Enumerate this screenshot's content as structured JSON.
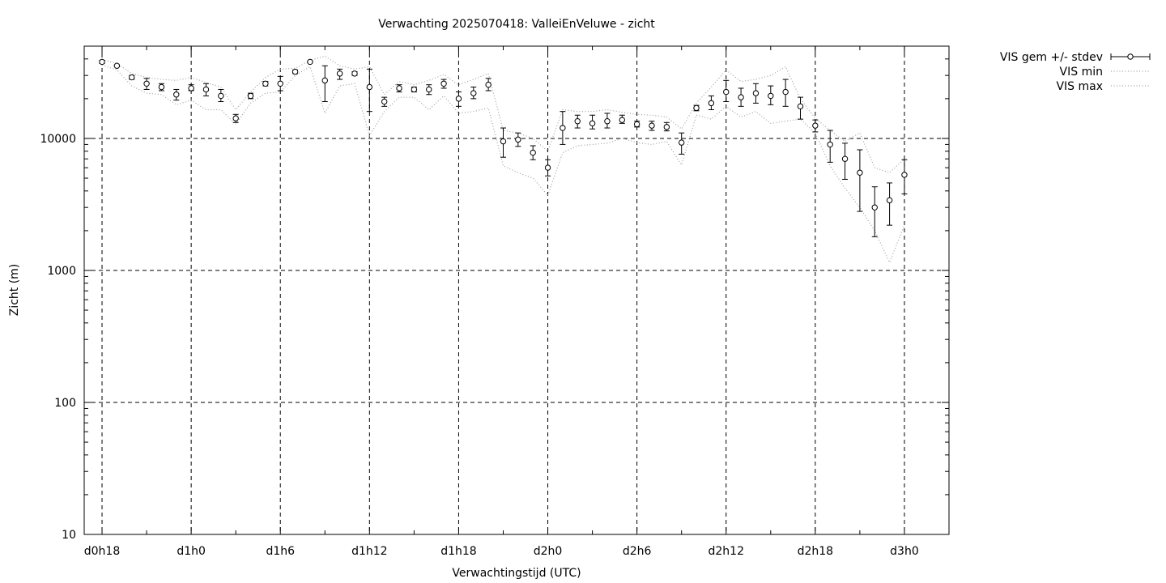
{
  "chart_data": {
    "type": "scatter",
    "title": "Verwachting 2025070418: ValleiEnVeluwe - zicht",
    "xlabel": "Verwachtingstijd (UTC)",
    "ylabel": "Zicht (m)",
    "y_scale": "log",
    "ylim": [
      10,
      50000
    ],
    "xlim_hours": [
      -1.2,
      57
    ],
    "y_ticks": [
      {
        "value": 10,
        "label": "10"
      },
      {
        "value": 100,
        "label": "100"
      },
      {
        "value": 1000,
        "label": "1000"
      },
      {
        "value": 10000,
        "label": "10000"
      }
    ],
    "x_ticks": [
      {
        "hour": 0,
        "label": "d0h18"
      },
      {
        "hour": 6,
        "label": "d1h0"
      },
      {
        "hour": 12,
        "label": "d1h6"
      },
      {
        "hour": 18,
        "label": "d1h12"
      },
      {
        "hour": 24,
        "label": "d1h18"
      },
      {
        "hour": 30,
        "label": "d2h0"
      },
      {
        "hour": 36,
        "label": "d2h6"
      },
      {
        "hour": 42,
        "label": "d2h12"
      },
      {
        "hour": 48,
        "label": "d2h18"
      },
      {
        "hour": 54,
        "label": "d3h0"
      }
    ],
    "grid": true,
    "legend_position": "outside-top-right",
    "series": [
      {
        "name": "VIS gem +/- stdev",
        "style": "points-with-errorbars",
        "color": "#000000",
        "x": [
          0,
          1,
          2,
          3,
          4,
          5,
          6,
          7,
          8,
          9,
          10,
          11,
          12,
          13,
          14,
          15,
          16,
          17,
          18,
          19,
          20,
          21,
          22,
          23,
          24,
          25,
          26,
          27,
          28,
          29,
          30,
          31,
          32,
          33,
          34,
          35,
          36,
          37,
          38,
          39,
          40,
          41,
          42,
          43,
          44,
          45,
          46,
          47,
          48,
          49,
          50,
          51,
          52,
          53,
          54
        ],
        "values": [
          38000,
          35500,
          29000,
          26000,
          24500,
          21500,
          24000,
          23500,
          21000,
          14200,
          21000,
          26000,
          26000,
          32000,
          38000,
          27500,
          31000,
          31000,
          24500,
          19000,
          24000,
          23500,
          23500,
          26000,
          20000,
          22000,
          25500,
          9500,
          9800,
          7800,
          6000,
          12000,
          13500,
          13000,
          13500,
          13800,
          12800,
          12500,
          12200,
          9300,
          17000,
          18500,
          22500,
          20500,
          22000,
          21000,
          22500,
          17500,
          12500,
          9000,
          7000,
          5500,
          3000,
          3400,
          5300
        ],
        "err_low": [
          37000,
          35000,
          28000,
          23500,
          23000,
          19500,
          23000,
          21000,
          19000,
          13200,
          20000,
          25000,
          23000,
          31000,
          37500,
          19000,
          28000,
          30000,
          16000,
          17500,
          22500,
          22500,
          21500,
          24000,
          17500,
          20000,
          23000,
          7200,
          8700,
          6900,
          5200,
          9000,
          12000,
          11800,
          12000,
          13000,
          12200,
          11500,
          11400,
          7600,
          16200,
          16500,
          19000,
          17500,
          18500,
          18000,
          17500,
          14000,
          11200,
          6600,
          4900,
          2800,
          1800,
          2200,
          3800
        ],
        "err_high": [
          39000,
          36000,
          30000,
          28500,
          26000,
          23500,
          25500,
          26000,
          23500,
          15200,
          22000,
          27000,
          29500,
          33000,
          38500,
          35500,
          33500,
          32000,
          33500,
          20500,
          25500,
          24500,
          25500,
          28000,
          22500,
          24500,
          28500,
          12000,
          11000,
          8800,
          6900,
          16000,
          15000,
          15000,
          15500,
          15000,
          13500,
          13500,
          13200,
          11000,
          17800,
          21000,
          27500,
          24000,
          26000,
          25000,
          28000,
          20500,
          13800,
          11500,
          9200,
          8200,
          4300,
          4600,
          6900
        ]
      },
      {
        "name": "VIS min",
        "style": "dotted-line",
        "color": "#a0a0a0",
        "x": [
          0,
          1,
          2,
          3,
          4,
          5,
          6,
          7,
          8,
          9,
          10,
          11,
          12,
          13,
          14,
          15,
          16,
          17,
          18,
          19,
          20,
          21,
          22,
          23,
          24,
          25,
          26,
          27,
          28,
          29,
          30,
          31,
          32,
          33,
          34,
          35,
          36,
          37,
          38,
          39,
          40,
          41,
          42,
          43,
          44,
          45,
          46,
          47,
          48,
          49,
          50,
          51,
          52,
          53,
          54
        ],
        "values": [
          36000,
          33000,
          25000,
          22000,
          21500,
          18000,
          19500,
          16500,
          16500,
          12800,
          18500,
          22000,
          22500,
          30000,
          35000,
          15500,
          25000,
          26000,
          10500,
          16000,
          20500,
          20500,
          16500,
          21000,
          15500,
          16000,
          17000,
          6200,
          5500,
          5000,
          3700,
          7800,
          8800,
          9000,
          9200,
          10000,
          9300,
          9000,
          9500,
          6300,
          15000,
          14000,
          17500,
          14500,
          16000,
          13000,
          13500,
          14000,
          11000,
          6200,
          4200,
          3000,
          2000,
          1150,
          2200
        ]
      },
      {
        "name": "VIS max",
        "style": "dotted-line",
        "color": "#a0a0a0",
        "x": [
          0,
          1,
          2,
          3,
          4,
          5,
          6,
          7,
          8,
          9,
          10,
          11,
          12,
          13,
          14,
          15,
          16,
          17,
          18,
          19,
          20,
          21,
          22,
          23,
          24,
          25,
          26,
          27,
          28,
          29,
          30,
          31,
          32,
          33,
          34,
          35,
          36,
          37,
          38,
          39,
          40,
          41,
          42,
          43,
          44,
          45,
          46,
          47,
          48,
          49,
          50,
          51,
          52,
          53,
          54
        ],
        "values": [
          39500,
          37000,
          31000,
          29000,
          28000,
          27500,
          29000,
          26500,
          24500,
          16500,
          22500,
          29000,
          33500,
          34000,
          39000,
          42000,
          35500,
          33500,
          35000,
          21500,
          27000,
          25500,
          27500,
          30500,
          25500,
          28000,
          31000,
          11500,
          11000,
          10000,
          8000,
          16500,
          16000,
          16000,
          16500,
          15800,
          15200,
          15000,
          14500,
          11800,
          18500,
          24500,
          33000,
          27000,
          28000,
          30000,
          35000,
          20000,
          14200,
          11500,
          9500,
          11000,
          6000,
          5500,
          7000
        ]
      }
    ]
  }
}
